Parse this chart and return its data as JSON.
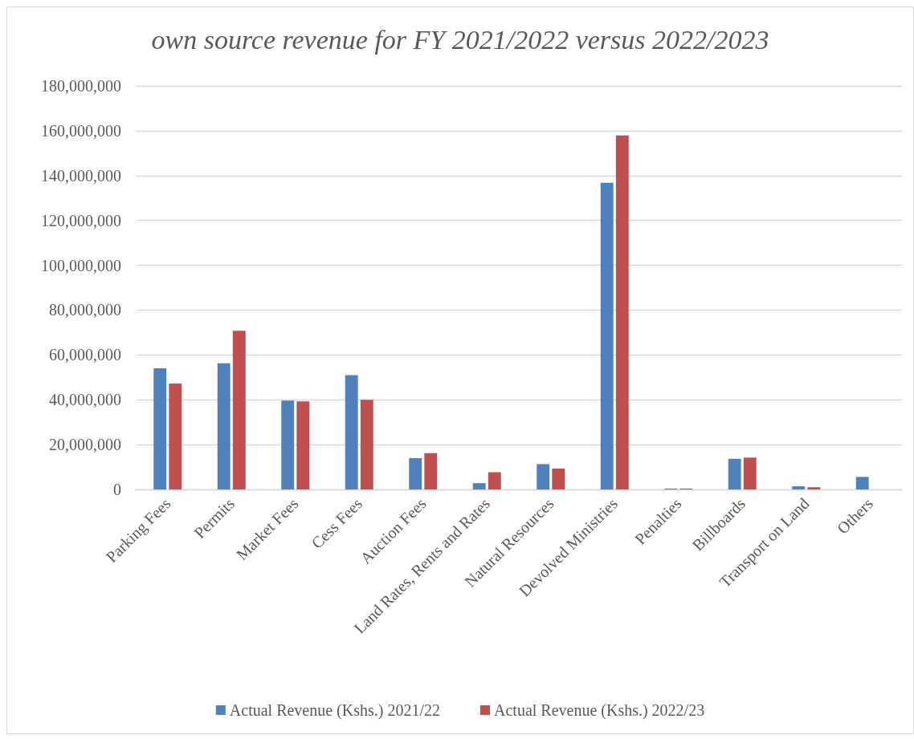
{
  "chart_data": {
    "type": "bar",
    "title": "own source revenue for FY 2021/2022 versus 2022/2023",
    "categories": [
      "Parking Fees",
      "Permits",
      "Market Fees",
      "Cess Fees",
      "Auction Fees",
      "Land Rates, Rents and Rates",
      "Natural Resources",
      "Devolved Ministries",
      "Penalties",
      "Billboards",
      "Transport on Land",
      "Others"
    ],
    "series": [
      {
        "name": "Actual Revenue (Kshs.) 2021/22",
        "color": "#4f81bd",
        "values": [
          54000000,
          56300000,
          39600000,
          51000000,
          14000000,
          2800000,
          11300000,
          136800000,
          400000,
          13700000,
          1400000,
          5600000
        ]
      },
      {
        "name": "Actual Revenue (Kshs.) 2022/23",
        "color": "#c0504d",
        "values": [
          47200000,
          70800000,
          39300000,
          40000000,
          16200000,
          7700000,
          9300000,
          157900000,
          400000,
          14200000,
          1000000,
          null
        ]
      }
    ],
    "ylim": [
      0,
      180000000
    ],
    "yticks": [
      0,
      {
        "value": 20000000,
        "label": "20,000,000"
      },
      {
        "value": 40000000,
        "label": "40,000,000"
      },
      {
        "value": 60000000,
        "label": "60,000,000"
      },
      {
        "value": 80000000,
        "label": "80,000,000"
      },
      {
        "value": 100000000,
        "label": "100,000,000"
      },
      {
        "value": 120000000,
        "label": "120,000,000"
      },
      {
        "value": 140000000,
        "label": "140,000,000"
      },
      {
        "value": 160000000,
        "label": "160,000,000"
      },
      {
        "value": 180000000,
        "label": "180,000,000"
      }
    ],
    "grid": "y",
    "legend": "bottom"
  }
}
